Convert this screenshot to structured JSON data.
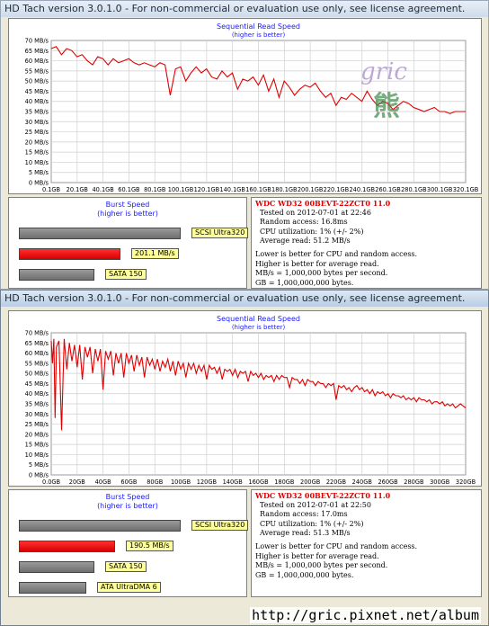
{
  "watermark": {
    "text": "gric",
    "glyph": "熊"
  },
  "footer": {
    "url": "http://gric.pixnet.net/album"
  },
  "windows": [
    {
      "title": "HD Tach version 3.0.1.0  - For non-commercial or evaluation use only, see license agreement.",
      "burst_title": "Burst Speed",
      "burst_subtitle": "(higher is better)",
      "bars": [
        {
          "label": "SCSI Ultra320",
          "value_mbs": 320,
          "color": "gray"
        },
        {
          "label": "201.1 MB/s",
          "value_mbs": 201.1,
          "color": "red"
        },
        {
          "label": "SATA 150",
          "value_mbs": 150,
          "color": "gray"
        }
      ],
      "info": {
        "drive": "WDC WD32 00BEVT-22ZCT0 11.0",
        "tested": "Tested on 2012-07-01 at 22:46",
        "random_access": "Random access: 16.8ms",
        "cpu": "CPU utilization: 1% (+/- 2%)",
        "avg_read": "Average read: 51.2 MB/s",
        "note1": "Lower is better for CPU and random access.",
        "note2": "Higher is better for average read.",
        "note3": "MB/s = 1,000,000 bytes per second.",
        "note4": "GB = 1,000,000,000 bytes."
      }
    },
    {
      "title": "HD Tach version 3.0.1.0  - For non-commercial or evaluation use only, see license agreement.",
      "burst_title": "Burst Speed",
      "burst_subtitle": "(higher is better)",
      "bars": [
        {
          "label": "SCSI Ultra320",
          "value_mbs": 320,
          "color": "gray"
        },
        {
          "label": "190.5 MB/s",
          "value_mbs": 190.5,
          "color": "red"
        },
        {
          "label": "SATA 150",
          "value_mbs": 150,
          "color": "gray"
        },
        {
          "label": "ATA UltraDMA 6",
          "value_mbs": 133,
          "color": "gray"
        }
      ],
      "info": {
        "drive": "WDC WD32 00BEVT-22ZCT0 11.0",
        "tested": "Tested on 2012-07-01 at 22:50",
        "random_access": "Random access: 17.0ms",
        "cpu": "CPU utilization: 1% (+/- 2%)",
        "avg_read": "Average read: 51.3 MB/s",
        "note1": "Lower is better for CPU and random access.",
        "note2": "Higher is better for average read.",
        "note3": "MB/s = 1,000,000 bytes per second.",
        "note4": "GB = 1,000,000,000 bytes."
      }
    }
  ],
  "chart_data": [
    {
      "type": "line",
      "title": "Sequential Read Speed",
      "subtitle": "(higher is better)",
      "y_ticks": [
        "0 MB/s",
        "5 MB/s",
        "10 MB/s",
        "15 MB/s",
        "20 MB/s",
        "25 MB/s",
        "30 MB/s",
        "35 MB/s",
        "40 MB/s",
        "45 MB/s",
        "50 MB/s",
        "55 MB/s",
        "60 MB/s",
        "65 MB/s",
        "70 MB/s"
      ],
      "x_ticks": [
        "0.1GB",
        "20.1GB",
        "40.1GB",
        "60.1GB",
        "80.1GB",
        "100.1GB",
        "120.1GB",
        "140.1GB",
        "160.1GB",
        "180.1GB",
        "200.1GB",
        "220.1GB",
        "240.1GB",
        "260.1GB",
        "280.1GB",
        "300.1GB",
        "320.1GB"
      ],
      "ylim": [
        0,
        70
      ],
      "xlim": [
        0.1,
        320.1
      ],
      "grid": true,
      "series": [
        {
          "color": "#e00000",
          "x": [
            0.1,
            4,
            8,
            12,
            16,
            20,
            24,
            28,
            32,
            36,
            40,
            44,
            48,
            52,
            56,
            60,
            64,
            68,
            72,
            76,
            80,
            84,
            88,
            92,
            96,
            100,
            104,
            108,
            112,
            116,
            120,
            124,
            128,
            132,
            136,
            140,
            144,
            148,
            152,
            156,
            160,
            164,
            168,
            172,
            176,
            180,
            184,
            188,
            192,
            196,
            200,
            204,
            208,
            212,
            216,
            220,
            224,
            228,
            232,
            236,
            240,
            244,
            248,
            252,
            256,
            260,
            264,
            268,
            272,
            276,
            280,
            284,
            288,
            292,
            296,
            300,
            304,
            308,
            312,
            316,
            320.1
          ],
          "y": [
            66,
            67,
            63,
            66,
            65,
            62,
            63,
            60,
            58,
            62,
            61,
            58,
            61,
            59,
            60,
            61,
            59,
            58,
            59,
            58,
            57,
            59,
            58,
            43,
            56,
            57,
            50,
            54,
            57,
            54,
            56,
            52,
            51,
            55,
            52,
            54,
            46,
            51,
            50,
            52,
            48,
            53,
            45,
            51,
            42,
            50,
            47,
            43,
            46,
            48,
            47,
            49,
            45,
            42,
            44,
            38,
            42,
            41,
            44,
            42,
            40,
            45,
            41,
            38,
            40,
            39,
            36,
            38,
            40,
            39,
            37,
            36,
            35,
            36,
            37,
            35,
            35,
            34,
            35,
            35,
            35
          ]
        }
      ]
    },
    {
      "type": "line",
      "title": "Sequential Read Speed",
      "subtitle": "(higher is better)",
      "y_ticks": [
        "0 MB/s",
        "5 MB/s",
        "10 MB/s",
        "15 MB/s",
        "20 MB/s",
        "25 MB/s",
        "30 MB/s",
        "35 MB/s",
        "40 MB/s",
        "45 MB/s",
        "50 MB/s",
        "55 MB/s",
        "60 MB/s",
        "65 MB/s",
        "70 MB/s"
      ],
      "x_ticks": [
        "0.0GB",
        "20GB",
        "40GB",
        "60GB",
        "80GB",
        "100GB",
        "120GB",
        "140GB",
        "160GB",
        "180GB",
        "200GB",
        "220GB",
        "240GB",
        "260GB",
        "280GB",
        "300GB",
        "320GB"
      ],
      "ylim": [
        0,
        70
      ],
      "xlim": [
        0,
        320
      ],
      "grid": true,
      "series": [
        {
          "color": "#e00000",
          "x": [
            0,
            1,
            2,
            3,
            4,
            6,
            8,
            10,
            12,
            14,
            16,
            18,
            20,
            22,
            24,
            26,
            28,
            30,
            32,
            34,
            36,
            38,
            40,
            42,
            44,
            46,
            48,
            50,
            52,
            54,
            56,
            58,
            60,
            62,
            64,
            66,
            68,
            70,
            72,
            74,
            76,
            78,
            80,
            82,
            84,
            86,
            88,
            90,
            92,
            94,
            96,
            98,
            100,
            102,
            104,
            106,
            108,
            110,
            112,
            114,
            116,
            118,
            120,
            122,
            124,
            126,
            128,
            130,
            132,
            134,
            136,
            138,
            140,
            142,
            144,
            146,
            148,
            150,
            152,
            154,
            156,
            158,
            160,
            162,
            164,
            166,
            168,
            170,
            172,
            174,
            176,
            178,
            180,
            182,
            184,
            186,
            188,
            190,
            192,
            194,
            196,
            198,
            200,
            202,
            204,
            206,
            208,
            210,
            212,
            214,
            216,
            218,
            220,
            222,
            224,
            226,
            228,
            230,
            232,
            234,
            236,
            238,
            240,
            242,
            244,
            246,
            248,
            250,
            252,
            254,
            256,
            258,
            260,
            262,
            264,
            266,
            268,
            270,
            272,
            274,
            276,
            278,
            280,
            282,
            284,
            286,
            288,
            290,
            292,
            294,
            296,
            298,
            300,
            302,
            304,
            306,
            308,
            310,
            312,
            314,
            316,
            318,
            320
          ],
          "y": [
            66,
            55,
            67,
            28,
            63,
            66,
            22,
            67,
            52,
            65,
            56,
            64,
            53,
            64,
            47,
            63,
            58,
            63,
            50,
            62,
            56,
            62,
            42,
            61,
            57,
            61,
            49,
            60,
            55,
            60,
            48,
            60,
            55,
            59,
            51,
            59,
            54,
            58,
            48,
            58,
            54,
            57,
            52,
            57,
            51,
            56,
            53,
            57,
            51,
            56,
            49,
            56,
            52,
            55,
            48,
            55,
            52,
            55,
            50,
            54,
            51,
            54,
            47,
            54,
            52,
            53,
            50,
            53,
            47,
            52,
            51,
            52,
            49,
            52,
            48,
            51,
            50,
            51,
            46,
            51,
            49,
            50,
            48,
            50,
            47,
            49,
            48,
            49,
            46,
            49,
            47,
            49,
            48,
            48,
            43,
            48,
            47,
            47,
            45,
            47,
            44,
            47,
            46,
            46,
            44,
            46,
            45,
            45,
            43,
            45,
            44,
            45,
            37,
            44,
            43,
            44,
            42,
            43,
            41,
            43,
            44,
            42,
            43,
            41,
            42,
            40,
            42,
            39,
            41,
            40,
            41,
            39,
            40,
            38,
            40,
            39,
            39,
            38,
            39,
            37,
            38,
            37,
            38,
            36,
            38,
            37,
            37,
            36,
            37,
            35,
            36,
            36,
            35,
            36,
            34,
            35,
            34,
            35,
            33,
            34,
            35,
            34,
            33
          ]
        }
      ]
    }
  ]
}
